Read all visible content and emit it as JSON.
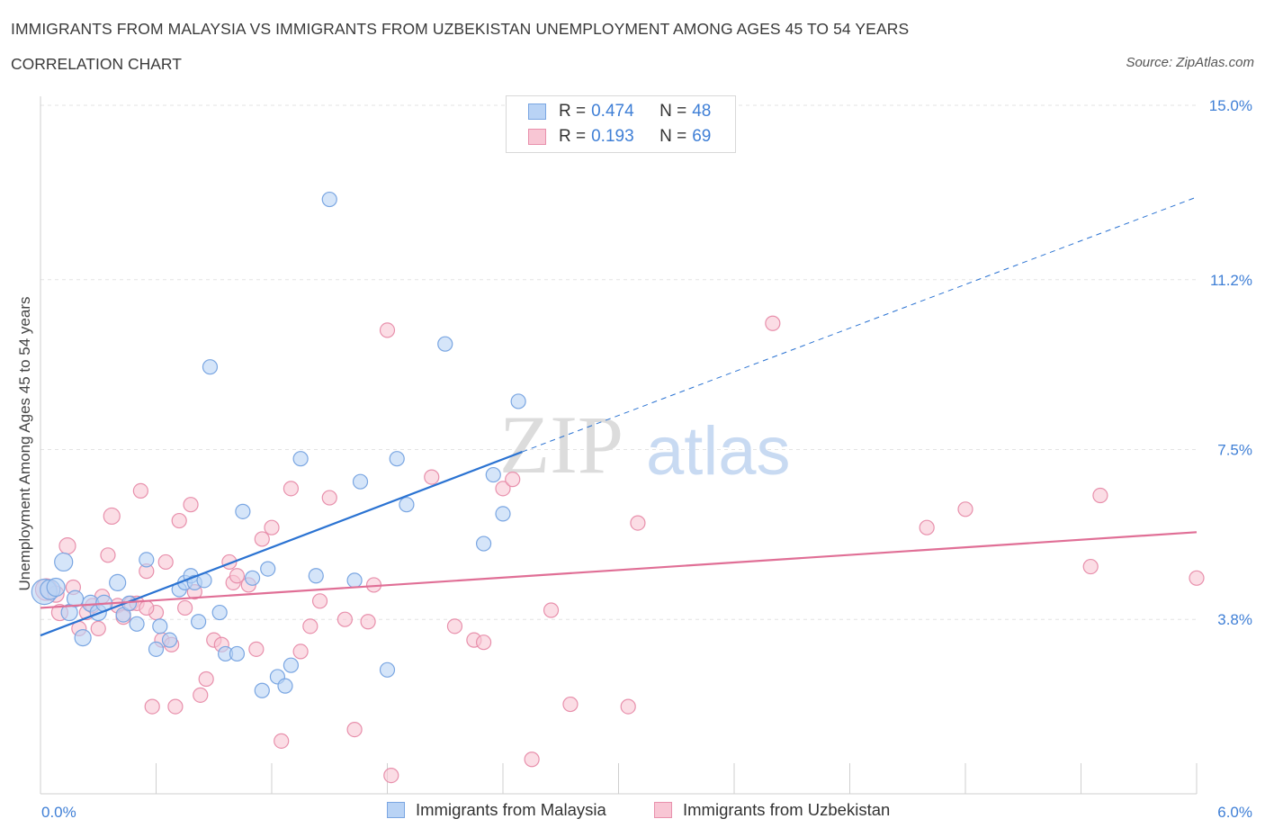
{
  "title": "IMMIGRANTS FROM MALAYSIA VS IMMIGRANTS FROM UZBEKISTAN UNEMPLOYMENT AMONG AGES 45 TO 54 YEARS",
  "subtitle": "CORRELATION CHART",
  "source": "Source: ZipAtlas.com",
  "watermark": {
    "zip": "ZIP",
    "atlas": "atlas"
  },
  "legend": {
    "rows": [
      {
        "r_label": "R =",
        "r_value": "0.474",
        "n_label": "N =",
        "n_value": "48"
      },
      {
        "r_label": "R =",
        "r_value": "0.193",
        "n_label": "N =",
        "n_value": "69"
      }
    ]
  },
  "bottom_legend": {
    "series1": "Immigrants from Malaysia",
    "series2": "Immigrants from Uzbekistan"
  },
  "colors": {
    "blue_fill": "#b9d3f5",
    "blue_stroke": "#7aa6e2",
    "blue_line": "#2b73d2",
    "pink_fill": "#f8c6d4",
    "pink_stroke": "#e890ac",
    "pink_line": "#e06f96",
    "axis_text": "#3f7fd6",
    "grid": "#e3e3e3"
  },
  "chart_data": {
    "type": "scatter",
    "title": "IMMIGRANTS FROM MALAYSIA VS IMMIGRANTS FROM UZBEKISTAN UNEMPLOYMENT AMONG AGES 45 TO 54 YEARS",
    "xlabel": "",
    "ylabel": "Unemployment Among Ages 45 to 54 years",
    "xlim": [
      0,
      6.0
    ],
    "ylim": [
      0,
      15.0
    ],
    "x_ticks_labels": [
      "0.0%",
      "6.0%"
    ],
    "y_ticks": [
      3.8,
      7.5,
      11.2,
      15.0
    ],
    "y_tick_labels": [
      "3.8%",
      "7.5%",
      "11.2%",
      "15.0%"
    ],
    "grid": true,
    "legend_position": "top-center",
    "series": [
      {
        "name": "Immigrants from Malaysia",
        "color": "#b9d3f5",
        "r": 0.474,
        "n": 48,
        "trend": {
          "x0": 0.0,
          "y0": 3.45,
          "x1": 2.5,
          "y1": 7.45,
          "dashed_to_x": 6.0,
          "dashed_to_y": 13.0
        },
        "points": [
          [
            0.02,
            4.4,
            14
          ],
          [
            0.05,
            4.45,
            11
          ],
          [
            0.12,
            5.05,
            10
          ],
          [
            0.15,
            3.95,
            9
          ],
          [
            0.18,
            4.25,
            9
          ],
          [
            0.22,
            3.4,
            9
          ],
          [
            0.26,
            4.15,
            9
          ],
          [
            0.3,
            3.95,
            9
          ],
          [
            0.33,
            4.15,
            9
          ],
          [
            0.4,
            4.6,
            9
          ],
          [
            0.43,
            3.9,
            8
          ],
          [
            0.46,
            4.15,
            8
          ],
          [
            0.5,
            3.7,
            8
          ],
          [
            0.55,
            5.1,
            8
          ],
          [
            0.6,
            3.15,
            8
          ],
          [
            0.62,
            3.65,
            8
          ],
          [
            0.67,
            3.35,
            8
          ],
          [
            0.72,
            4.45,
            8
          ],
          [
            0.75,
            4.6,
            8
          ],
          [
            0.78,
            4.75,
            8
          ],
          [
            0.8,
            4.6,
            8
          ],
          [
            0.82,
            3.75,
            8
          ],
          [
            0.85,
            4.65,
            8
          ],
          [
            0.88,
            9.3,
            8
          ],
          [
            0.93,
            3.95,
            8
          ],
          [
            0.96,
            3.05,
            8
          ],
          [
            1.02,
            3.05,
            8
          ],
          [
            1.05,
            6.15,
            8
          ],
          [
            1.1,
            4.7,
            8
          ],
          [
            1.15,
            2.25,
            8
          ],
          [
            1.18,
            4.9,
            8
          ],
          [
            1.23,
            2.55,
            8
          ],
          [
            1.27,
            2.35,
            8
          ],
          [
            1.3,
            2.8,
            8
          ],
          [
            1.35,
            7.3,
            8
          ],
          [
            1.43,
            4.75,
            8
          ],
          [
            1.5,
            12.95,
            8
          ],
          [
            1.63,
            4.65,
            8
          ],
          [
            1.66,
            6.8,
            8
          ],
          [
            1.8,
            2.7,
            8
          ],
          [
            1.85,
            7.3,
            8
          ],
          [
            1.9,
            6.3,
            8
          ],
          [
            2.1,
            9.8,
            8
          ],
          [
            2.3,
            5.45,
            8
          ],
          [
            2.35,
            6.95,
            8
          ],
          [
            2.4,
            6.1,
            8
          ],
          [
            2.48,
            8.55,
            8
          ],
          [
            0.08,
            4.5,
            10
          ]
        ]
      },
      {
        "name": "Immigrants from Uzbekistan",
        "color": "#f8c6d4",
        "r": 0.193,
        "n": 69,
        "trend": {
          "x0": 0.0,
          "y0": 4.05,
          "x1": 6.0,
          "y1": 5.7
        },
        "points": [
          [
            0.03,
            4.45,
            12
          ],
          [
            0.08,
            4.35,
            9
          ],
          [
            0.1,
            3.95,
            9
          ],
          [
            0.14,
            5.4,
            9
          ],
          [
            0.17,
            4.5,
            8
          ],
          [
            0.2,
            3.6,
            8
          ],
          [
            0.24,
            3.95,
            8
          ],
          [
            0.27,
            4.1,
            8
          ],
          [
            0.3,
            3.6,
            8
          ],
          [
            0.32,
            4.3,
            8
          ],
          [
            0.35,
            5.2,
            8
          ],
          [
            0.37,
            6.05,
            9
          ],
          [
            0.4,
            4.1,
            8
          ],
          [
            0.43,
            3.85,
            8
          ],
          [
            0.47,
            4.15,
            8
          ],
          [
            0.5,
            4.15,
            8
          ],
          [
            0.52,
            6.6,
            8
          ],
          [
            0.55,
            4.85,
            8
          ],
          [
            0.58,
            1.9,
            8
          ],
          [
            0.6,
            3.95,
            8
          ],
          [
            0.63,
            3.35,
            8
          ],
          [
            0.65,
            5.05,
            8
          ],
          [
            0.68,
            3.25,
            8
          ],
          [
            0.7,
            1.9,
            8
          ],
          [
            0.72,
            5.95,
            8
          ],
          [
            0.75,
            4.05,
            8
          ],
          [
            0.78,
            6.3,
            8
          ],
          [
            0.8,
            4.4,
            8
          ],
          [
            0.83,
            2.15,
            8
          ],
          [
            0.86,
            2.5,
            8
          ],
          [
            0.9,
            3.35,
            8
          ],
          [
            0.94,
            3.25,
            8
          ],
          [
            0.98,
            5.05,
            8
          ],
          [
            1.0,
            4.6,
            8
          ],
          [
            1.02,
            4.75,
            8
          ],
          [
            1.08,
            4.55,
            8
          ],
          [
            1.12,
            3.15,
            8
          ],
          [
            1.15,
            5.55,
            8
          ],
          [
            1.2,
            5.8,
            8
          ],
          [
            1.25,
            1.15,
            8
          ],
          [
            1.3,
            6.65,
            8
          ],
          [
            1.35,
            3.1,
            8
          ],
          [
            1.4,
            3.65,
            8
          ],
          [
            1.45,
            4.2,
            8
          ],
          [
            1.5,
            6.45,
            8
          ],
          [
            1.58,
            3.8,
            8
          ],
          [
            1.63,
            1.4,
            8
          ],
          [
            1.7,
            3.75,
            8
          ],
          [
            1.73,
            4.55,
            8
          ],
          [
            1.8,
            10.1,
            8
          ],
          [
            1.82,
            0.4,
            8
          ],
          [
            2.03,
            6.9,
            8
          ],
          [
            2.15,
            3.65,
            8
          ],
          [
            2.25,
            3.35,
            8
          ],
          [
            2.3,
            3.3,
            8
          ],
          [
            2.4,
            6.65,
            8
          ],
          [
            2.45,
            6.85,
            8
          ],
          [
            2.55,
            0.75,
            8
          ],
          [
            2.65,
            4.0,
            8
          ],
          [
            2.75,
            1.95,
            8
          ],
          [
            3.05,
            1.9,
            8
          ],
          [
            3.1,
            5.9,
            8
          ],
          [
            3.8,
            10.25,
            8
          ],
          [
            4.6,
            5.8,
            8
          ],
          [
            4.8,
            6.2,
            8
          ],
          [
            5.45,
            4.95,
            8
          ],
          [
            5.5,
            6.5,
            8
          ],
          [
            6.0,
            4.7,
            8
          ],
          [
            0.55,
            4.05,
            8
          ]
        ]
      }
    ]
  }
}
